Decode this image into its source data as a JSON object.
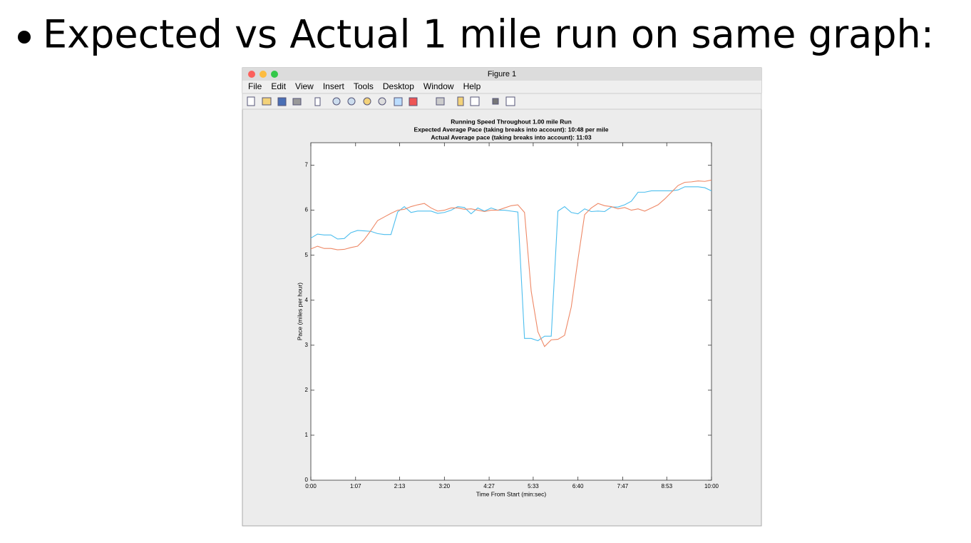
{
  "slide": {
    "heading": "Expected vs Actual 1 mile run on same graph:"
  },
  "window": {
    "title": "Figure 1",
    "menus": [
      "File",
      "Edit",
      "View",
      "Insert",
      "Tools",
      "Desktop",
      "Window",
      "Help"
    ]
  },
  "chart_data": {
    "type": "line",
    "title": [
      "Running Speed Throughout 1.00 mile Run",
      "Expected Average Pace (taking breaks into account): 10:48 per mile",
      "Actual Average pace (taking breaks into account): 11:03"
    ],
    "x_label": "Time From Start (min:sec)",
    "y_label": "Pace (miles per hour)",
    "x": [
      0,
      10,
      20,
      30,
      40,
      50,
      60,
      70,
      80,
      90,
      100,
      110,
      120,
      130,
      140,
      150,
      160,
      170,
      180,
      190,
      200,
      210,
      220,
      230,
      240,
      250,
      260,
      270,
      280,
      290,
      300,
      310,
      320,
      330,
      340,
      350,
      360,
      370,
      380,
      390,
      400,
      410,
      420,
      430,
      440,
      450,
      460,
      470,
      480,
      490,
      500,
      510,
      520,
      530,
      540,
      550,
      560,
      570,
      580,
      590,
      600
    ],
    "series": [
      {
        "color": "#4DBEEE",
        "values": [
          5.38,
          5.47,
          5.45,
          5.45,
          5.36,
          5.37,
          5.5,
          5.55,
          5.54,
          5.53,
          5.48,
          5.46,
          5.46,
          5.96,
          6.08,
          5.95,
          5.98,
          5.98,
          5.98,
          5.93,
          5.95,
          6.0,
          6.08,
          6.06,
          5.92,
          6.05,
          5.98,
          6.05,
          6.0,
          6.0,
          5.98,
          5.96,
          3.15,
          3.15,
          3.1,
          3.2,
          3.2,
          5.98,
          6.08,
          5.95,
          5.92,
          6.03,
          5.97,
          5.98,
          5.97,
          6.07,
          6.07,
          6.12,
          6.2,
          6.4,
          6.4,
          6.43,
          6.43,
          6.43,
          6.43,
          6.45,
          6.52,
          6.52,
          6.52,
          6.5,
          6.43
        ]
      },
      {
        "color": "#EE8866",
        "values": [
          5.14,
          5.2,
          5.15,
          5.15,
          5.12,
          5.13,
          5.17,
          5.2,
          5.35,
          5.55,
          5.77,
          5.85,
          5.93,
          6.0,
          6.02,
          6.08,
          6.12,
          6.15,
          6.05,
          5.98,
          6.0,
          6.05,
          6.05,
          6.02,
          6.03,
          6.0,
          5.97,
          6.0,
          6.0,
          6.05,
          6.1,
          6.12,
          5.95,
          4.2,
          3.3,
          2.97,
          3.12,
          3.13,
          3.22,
          3.85,
          4.9,
          5.9,
          6.05,
          6.15,
          6.1,
          6.08,
          6.03,
          6.06,
          6.0,
          6.03,
          5.98,
          6.05,
          6.12,
          6.25,
          6.4,
          6.55,
          6.62,
          6.63,
          6.65,
          6.64,
          6.67
        ]
      }
    ],
    "xlim": [
      0,
      600
    ],
    "xticks": [
      {
        "value": 0,
        "label": "0:00"
      },
      {
        "value": 67,
        "label": "1:07"
      },
      {
        "value": 133,
        "label": "2:13"
      },
      {
        "value": 200,
        "label": "3:20"
      },
      {
        "value": 267,
        "label": "4:27"
      },
      {
        "value": 333,
        "label": "5:33"
      },
      {
        "value": 400,
        "label": "6:40"
      },
      {
        "value": 467,
        "label": "7:47"
      },
      {
        "value": 533,
        "label": "8:53"
      },
      {
        "value": 600,
        "label": "10:00"
      }
    ],
    "ylim": [
      0,
      7.5
    ],
    "yticks": [
      0,
      1,
      2,
      3,
      4,
      5,
      6,
      7
    ],
    "grid": false
  }
}
